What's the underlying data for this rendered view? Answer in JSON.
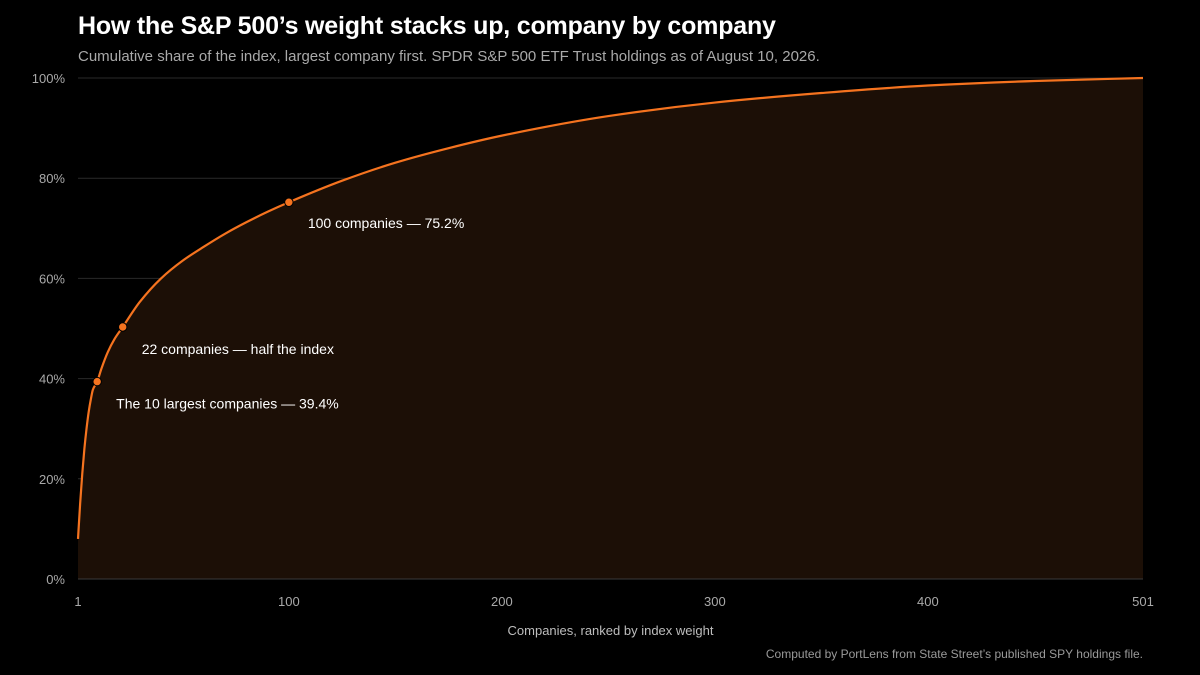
{
  "header": {
    "title": "How the S&P 500’s weight stacks up, company by company",
    "subtitle": "Cumulative share of the index, largest company first. SPDR S&P 500 ETF Trust holdings as of August 10, 2026."
  },
  "footer": {
    "source": "Computed by PortLens from State Street’s published SPY holdings file."
  },
  "colors": {
    "line": "#f5731f",
    "area": "#1c0f06",
    "grid": "#2a2a2a",
    "guide": "#6b3a1c"
  },
  "chart_data": {
    "type": "area",
    "title": "How the S&P 500’s weight stacks up, company by company",
    "xlabel": "Companies, ranked by index weight",
    "ylabel": "",
    "xlim": [
      1,
      501
    ],
    "ylim": [
      0,
      100
    ],
    "x_ticks": [
      1,
      100,
      200,
      300,
      400,
      501
    ],
    "y_ticks": [
      0,
      20,
      40,
      60,
      80,
      100
    ],
    "y_tick_format": "percent",
    "grid": "horizontal",
    "series": [
      {
        "x": [
          1,
          2,
          3,
          4,
          5,
          6,
          7,
          8,
          10,
          12,
          15,
          18,
          22,
          30,
          40,
          50,
          60,
          70,
          80,
          90,
          100,
          125,
          150,
          175,
          200,
          250,
          300,
          350,
          400,
          450,
          501
        ],
        "values": [
          8.0,
          15.0,
          21.0,
          26.0,
          30.0,
          33.3,
          35.8,
          37.8,
          39.4,
          42.0,
          45.3,
          47.8,
          50.3,
          55.3,
          60.0,
          63.5,
          66.3,
          68.9,
          71.2,
          73.3,
          75.2,
          79.5,
          83.1,
          86.0,
          88.5,
          92.4,
          95.1,
          97.0,
          98.5,
          99.4,
          100.0
        ]
      }
    ],
    "annotations": [
      {
        "x": 10,
        "y": 39.4,
        "label": "The 10 largest companies — 39.4%"
      },
      {
        "x": 22,
        "y": 50.3,
        "label": "22 companies — half the index"
      },
      {
        "x": 100,
        "y": 75.2,
        "label": "100 companies — 75.2%"
      }
    ]
  }
}
